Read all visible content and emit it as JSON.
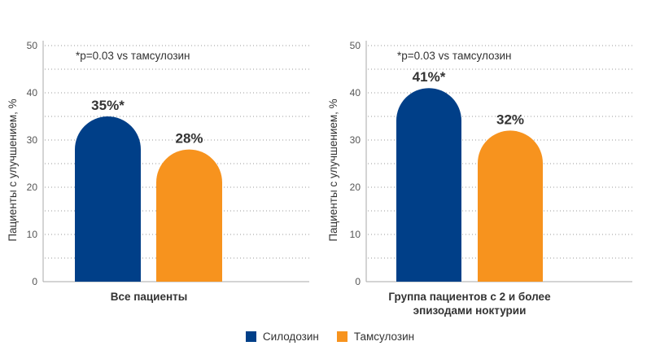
{
  "colors": {
    "silodosin": "#003f88",
    "tamsulosin": "#f7931e",
    "text": "#333333",
    "axis": "#aaaaaa",
    "grid": "#999999"
  },
  "legend": {
    "items": [
      {
        "name": "Силодозин",
        "color": "#003f88"
      },
      {
        "name": "Тамсулозин",
        "color": "#f7931e"
      }
    ]
  },
  "chart_data": [
    {
      "type": "bar",
      "title": "",
      "xlabel": "Все пациенты",
      "ylabel": "Пациенты с улучшением, %",
      "ylim": [
        0,
        50
      ],
      "yticks": [
        0,
        10,
        20,
        30,
        40,
        50
      ],
      "grid": true,
      "annotation": "*p=0.03 vs тамсулозин",
      "categories": [
        "Силодозин",
        "Тамсулозин"
      ],
      "values": [
        35,
        28
      ],
      "labels": [
        "35%*",
        "28%"
      ],
      "colors": [
        "#003f88",
        "#f7931e"
      ]
    },
    {
      "type": "bar",
      "title": "",
      "xlabel": "Группа пациентов с 2 и более\nэпизодами ноктурии",
      "ylabel": "Пациенты с улучшением, %",
      "ylim": [
        0,
        50
      ],
      "yticks": [
        0,
        10,
        20,
        30,
        40,
        50
      ],
      "grid": true,
      "annotation": "*p=0.03 vs тамсулозин",
      "categories": [
        "Силодозин",
        "Тамсулозин"
      ],
      "values": [
        41,
        32
      ],
      "labels": [
        "41%*",
        "32%"
      ],
      "colors": [
        "#003f88",
        "#f7931e"
      ]
    }
  ]
}
